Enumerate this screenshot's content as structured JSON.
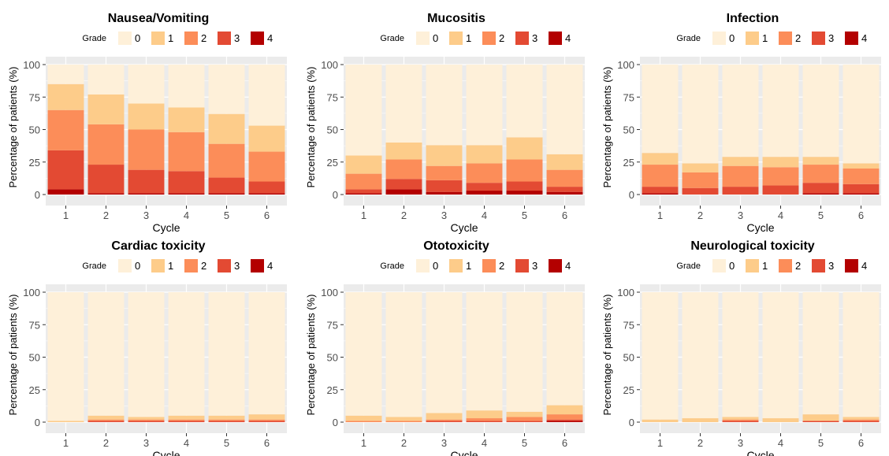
{
  "chart_data": [
    {
      "type": "bar",
      "title": "Nausea/Vomiting",
      "legend_title": "Grade",
      "legend_position": "top",
      "xlabel": "Cycle",
      "ylabel": "Percentage of patients (%)",
      "categories": [
        "1",
        "2",
        "3",
        "4",
        "5",
        "6"
      ],
      "ylim": [
        0,
        100
      ],
      "yticks": [
        "0",
        "25",
        "50",
        "75",
        "100"
      ],
      "grid": true,
      "stacked": true,
      "series": [
        {
          "name": "4",
          "values": [
            4,
            1,
            1,
            1,
            1,
            1
          ]
        },
        {
          "name": "3",
          "values": [
            30,
            22,
            18,
            17,
            12,
            9
          ]
        },
        {
          "name": "2",
          "values": [
            31,
            31,
            31,
            30,
            26,
            23
          ]
        },
        {
          "name": "1",
          "values": [
            20,
            23,
            20,
            19,
            23,
            20
          ]
        },
        {
          "name": "0",
          "values": [
            15,
            23,
            30,
            33,
            38,
            47
          ]
        }
      ]
    },
    {
      "type": "bar",
      "title": "Mucositis",
      "legend_title": "Grade",
      "legend_position": "top",
      "xlabel": "Cycle",
      "ylabel": "Percentage of patients (%)",
      "categories": [
        "1",
        "2",
        "3",
        "4",
        "5",
        "6"
      ],
      "ylim": [
        0,
        100
      ],
      "yticks": [
        "0",
        "25",
        "50",
        "75",
        "100"
      ],
      "grid": true,
      "stacked": true,
      "series": [
        {
          "name": "4",
          "values": [
            1,
            4,
            2,
            3,
            3,
            2
          ]
        },
        {
          "name": "3",
          "values": [
            3,
            8,
            9,
            6,
            7,
            4
          ]
        },
        {
          "name": "2",
          "values": [
            12,
            15,
            11,
            15,
            17,
            13
          ]
        },
        {
          "name": "1",
          "values": [
            14,
            13,
            16,
            14,
            17,
            12
          ]
        },
        {
          "name": "0",
          "values": [
            70,
            60,
            62,
            62,
            56,
            69
          ]
        }
      ]
    },
    {
      "type": "bar",
      "title": "Infection",
      "legend_title": "Grade",
      "legend_position": "top",
      "xlabel": "Cycle",
      "ylabel": "Percentage of patients (%)",
      "categories": [
        "1",
        "2",
        "3",
        "4",
        "5",
        "6"
      ],
      "ylim": [
        0,
        100
      ],
      "yticks": [
        "0",
        "25",
        "50",
        "75",
        "100"
      ],
      "grid": true,
      "stacked": true,
      "series": [
        {
          "name": "4",
          "values": [
            1,
            0,
            0,
            0,
            1,
            1
          ]
        },
        {
          "name": "3",
          "values": [
            5,
            5,
            6,
            7,
            8,
            7
          ]
        },
        {
          "name": "2",
          "values": [
            17,
            12,
            16,
            14,
            14,
            12
          ]
        },
        {
          "name": "1",
          "values": [
            9,
            7,
            7,
            8,
            6,
            4
          ]
        },
        {
          "name": "0",
          "values": [
            68,
            76,
            71,
            71,
            71,
            76
          ]
        }
      ]
    },
    {
      "type": "bar",
      "title": "Cardiac toxicity",
      "legend_title": "Grade",
      "legend_position": "top",
      "xlabel": "Cycle",
      "ylabel": "Percentage of patients (%)",
      "categories": [
        "1",
        "2",
        "3",
        "4",
        "5",
        "6"
      ],
      "ylim": [
        0,
        100
      ],
      "yticks": [
        "0",
        "25",
        "50",
        "75",
        "100"
      ],
      "grid": true,
      "stacked": true,
      "series": [
        {
          "name": "4",
          "values": [
            0,
            0,
            0,
            0,
            0,
            0
          ]
        },
        {
          "name": "3",
          "values": [
            0,
            1,
            1,
            1,
            1,
            1
          ]
        },
        {
          "name": "2",
          "values": [
            0,
            1,
            1,
            1,
            1,
            1
          ]
        },
        {
          "name": "1",
          "values": [
            1,
            3,
            2,
            3,
            3,
            4
          ]
        },
        {
          "name": "0",
          "values": [
            99,
            95,
            96,
            95,
            95,
            94
          ]
        }
      ]
    },
    {
      "type": "bar",
      "title": "Ototoxicity",
      "legend_title": "Grade",
      "legend_position": "top",
      "xlabel": "Cycle",
      "ylabel": "Percentage of patients (%)",
      "categories": [
        "1",
        "2",
        "3",
        "4",
        "5",
        "6"
      ],
      "ylim": [
        0,
        100
      ],
      "yticks": [
        "0",
        "25",
        "50",
        "75",
        "100"
      ],
      "grid": true,
      "stacked": true,
      "series": [
        {
          "name": "4",
          "values": [
            0,
            0,
            0,
            0,
            0,
            1
          ]
        },
        {
          "name": "3",
          "values": [
            0,
            0,
            1,
            1,
            1,
            1
          ]
        },
        {
          "name": "2",
          "values": [
            1,
            1,
            1,
            2,
            3,
            4
          ]
        },
        {
          "name": "1",
          "values": [
            4,
            3,
            5,
            6,
            4,
            7
          ]
        },
        {
          "name": "0",
          "values": [
            95,
            96,
            93,
            91,
            92,
            87
          ]
        }
      ]
    },
    {
      "type": "bar",
      "title": "Neurological toxicity",
      "legend_title": "Grade",
      "legend_position": "top",
      "xlabel": "Cycle",
      "ylabel": "Percentage of patients (%)",
      "categories": [
        "1",
        "2",
        "3",
        "4",
        "5",
        "6"
      ],
      "ylim": [
        0,
        100
      ],
      "yticks": [
        "0",
        "25",
        "50",
        "75",
        "100"
      ],
      "grid": true,
      "stacked": true,
      "series": [
        {
          "name": "4",
          "values": [
            0,
            0,
            0,
            0,
            0,
            0
          ]
        },
        {
          "name": "3",
          "values": [
            0,
            0,
            1,
            0,
            1,
            1
          ]
        },
        {
          "name": "2",
          "values": [
            0,
            0,
            1,
            0,
            0,
            1
          ]
        },
        {
          "name": "1",
          "values": [
            2,
            3,
            2,
            3,
            5,
            2
          ]
        },
        {
          "name": "0",
          "values": [
            98,
            97,
            96,
            97,
            94,
            96
          ]
        }
      ]
    }
  ],
  "legend_labels": [
    "0",
    "1",
    "2",
    "3",
    "4"
  ],
  "grade_colors": {
    "0": "#FEF0D9",
    "1": "#FDCC8A",
    "2": "#FC8D59",
    "3": "#E34A33",
    "4": "#B30000"
  },
  "panel_background": "#EBEBEB",
  "gridline_color": "#FFFFFF"
}
